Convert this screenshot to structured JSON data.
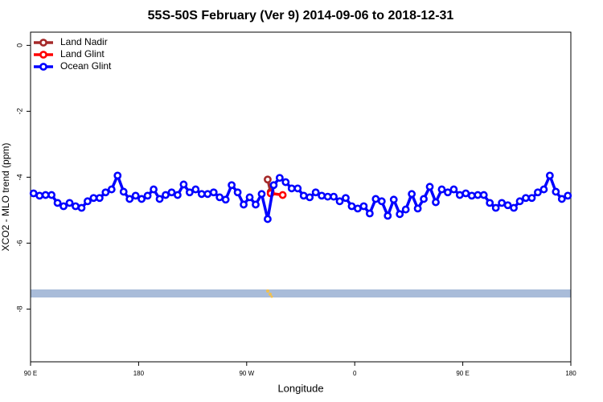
{
  "chart_data": {
    "type": "line",
    "title": "55S-50S February (Ver 9)   2014-09-06 to 2018-12-31",
    "x_label": "Longitude",
    "y_label": "XCO2 - MLO trend (ppm)",
    "xlim": [
      90,
      540
    ],
    "ylim": [
      -9.6,
      0.4
    ],
    "xticks": [
      {
        "value": 90,
        "label": "90 E"
      },
      180,
      {
        "value": 270,
        "label": "90 W"
      },
      {
        "value": 360,
        "label": "0"
      },
      {
        "value": 450,
        "label": "90 E"
      },
      {
        "value": 540,
        "label": "180"
      }
    ],
    "yticks": [
      0,
      -2,
      -4,
      -6,
      -8
    ],
    "legend": "top-left",
    "series": [
      {
        "name": "Land Nadir",
        "color": "#a52a2a",
        "x": [
          287.5,
          290
        ],
        "values": [
          -4.07,
          -4.45
        ]
      },
      {
        "name": "Land Glint",
        "color": "#ff0000",
        "x": [
          290,
          300
        ],
        "values": [
          -4.49,
          -4.54
        ]
      },
      {
        "name": "Ocean Glint",
        "color": "#0000ff",
        "x": [
          92.5,
          97.5,
          102.5,
          107.5,
          112.5,
          117.5,
          122.5,
          127.5,
          132.5,
          137.5,
          142.5,
          147.5,
          152.5,
          157.5,
          162.5,
          167.5,
          172.5,
          177.5,
          182.5,
          187.5,
          192.5,
          197.5,
          202.5,
          207.5,
          212.5,
          217.5,
          222.5,
          227.5,
          232.5,
          237.5,
          242.5,
          247.5,
          252.5,
          257.5,
          262.5,
          267.5,
          272.5,
          277.5,
          282.5,
          287.5,
          292.5,
          297.5,
          302.5,
          307.5,
          312.5,
          317.5,
          322.5,
          327.5,
          332.5,
          337.5,
          342.5,
          347.5,
          352.5,
          357.5,
          362.5,
          367.5,
          372.5,
          377.5,
          382.5,
          387.5,
          392.5,
          397.5,
          402.5,
          407.5,
          412.5,
          417.5,
          422.5,
          427.5,
          432.5,
          437.5,
          442.5,
          447.5,
          452.5,
          457.5,
          462.5,
          467.5,
          472.5,
          477.5,
          482.5,
          487.5,
          492.5,
          497.5,
          502.5,
          507.5,
          512.5,
          517.5,
          522.5,
          527.5,
          532.5,
          537.5
        ],
        "values": [
          -4.49,
          -4.56,
          -4.54,
          -4.54,
          -4.78,
          -4.88,
          -4.78,
          -4.88,
          -4.93,
          -4.73,
          -4.63,
          -4.63,
          -4.46,
          -4.37,
          -3.95,
          -4.44,
          -4.66,
          -4.56,
          -4.66,
          -4.56,
          -4.37,
          -4.66,
          -4.54,
          -4.46,
          -4.54,
          -4.22,
          -4.46,
          -4.37,
          -4.51,
          -4.51,
          -4.46,
          -4.61,
          -4.68,
          -4.24,
          -4.46,
          -4.83,
          -4.61,
          -4.83,
          -4.51,
          -5.27,
          -4.24,
          -4.02,
          -4.15,
          -4.34,
          -4.34,
          -4.56,
          -4.61,
          -4.46,
          -4.56,
          -4.59,
          -4.59,
          -4.73,
          -4.63,
          -4.88,
          -4.95,
          -4.88,
          -5.1,
          -4.66,
          -4.73,
          -5.17,
          -4.68,
          -5.12,
          -4.98,
          -4.51,
          -4.95,
          -4.66,
          -4.29,
          -4.76,
          -4.37,
          -4.46,
          -4.37,
          -4.54,
          -4.49,
          -4.56,
          -4.54,
          -4.54,
          -4.78,
          -4.93,
          -4.78,
          -4.85,
          -4.93,
          -4.73,
          -4.63,
          -4.63,
          -4.46,
          -4.37,
          -3.95,
          -4.44,
          -4.66,
          -4.56
        ]
      }
    ]
  }
}
